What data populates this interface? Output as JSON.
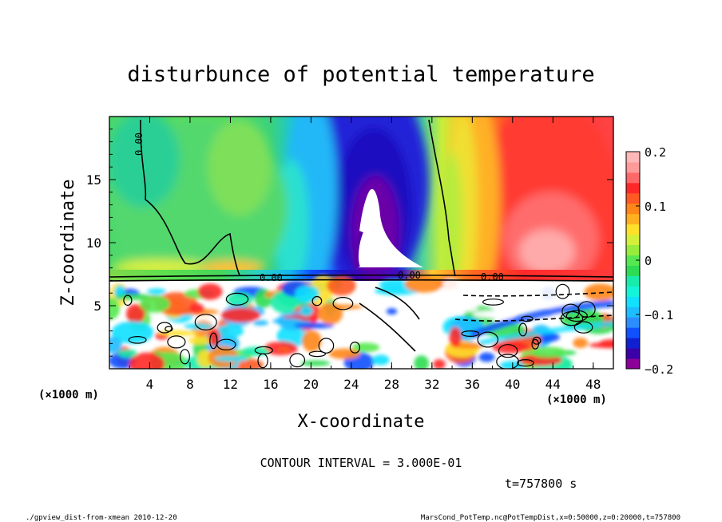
{
  "chart_data": {
    "type": "heatmap",
    "title": "disturbunce of potential temperature",
    "xlabel": "X-coordinate",
    "ylabel": "Z-coordinate",
    "x_unit_label": "(×1000 m)",
    "y_unit_label": "(×1000 m)",
    "xlim": [
      0,
      50
    ],
    "ylim": [
      0,
      20
    ],
    "x_ticks": [
      4,
      8,
      12,
      16,
      20,
      24,
      28,
      32,
      36,
      40,
      44,
      48
    ],
    "y_ticks": [
      5,
      10,
      15
    ],
    "colorbar": {
      "range": [
        -0.2,
        0.2
      ],
      "tick_values": [
        0.2,
        0.1,
        0,
        -0.1,
        -0.2
      ],
      "tick_labels": [
        "0.2",
        "0.1",
        "0",
        "−0.1",
        "−0.2"
      ],
      "colors": [
        "#8b0099",
        "#3b00a8",
        "#1020d0",
        "#1050ff",
        "#2c8dff",
        "#1dbdff",
        "#12e0ff",
        "#12f5d8",
        "#18ecaa",
        "#2ddc52",
        "#55e850",
        "#98ec3c",
        "#d4f03a",
        "#ffe02a",
        "#ffb020",
        "#ff8618",
        "#ff5a24",
        "#ff2828",
        "#ff6868",
        "#ff9a9a",
        "#ffb8b8"
      ]
    },
    "contour_interval_text": "CONTOUR INTERVAL = 3.000E-01",
    "contour_labels": [
      "0.00",
      "0.00",
      "0.00",
      "0.00"
    ],
    "time_text": "t=757800  s",
    "footer_left": "./gpview_dist-from-xmean  2010-12-20",
    "footer_right": "MarsCond_PotTemp.nc@PotTempDist,x=0:50000,z=0:20000,t=757800"
  }
}
